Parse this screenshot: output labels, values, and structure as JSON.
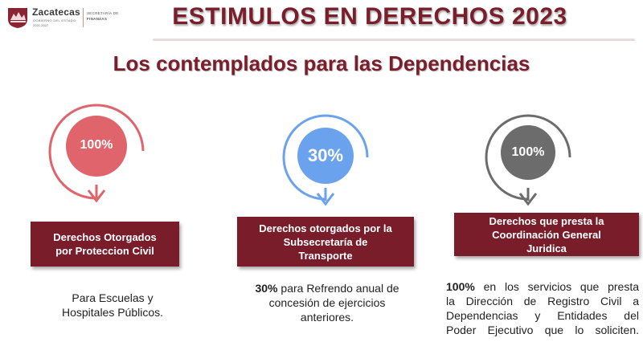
{
  "header": {
    "logo_name": "Zacatecas",
    "logo_sub1": "GOBIERNO DEL ESTADO",
    "logo_sub2": "2021-2027",
    "dept_line1": "SECRETARÍA DE",
    "dept_line2": "FINANZAS",
    "title": "ESTIMULOS EN DERECHOS 2023"
  },
  "subtitle": "Los contemplados para las Dependencias",
  "colors": {
    "maroon": "#7a1d2b",
    "red_ring": "#e0646b",
    "blue_ring": "#6aa2ee",
    "gray_ring": "#6c6c6c"
  },
  "items": [
    {
      "percent": "100%",
      "bar_line1": "Derechos Otorgados",
      "bar_line2": "por Proteccion Civil",
      "desc_line1": "Para Escuelas y",
      "desc_line2": "Hospitales Públicos."
    },
    {
      "percent": "30%",
      "bar_line1": "Derechos otorgados por la",
      "bar_line2": "Subsecretaría de",
      "bar_line3": "Transporte",
      "desc_bold": "30%",
      "desc_line1_rest": " para Refrendo anual de",
      "desc_line2": "concesión de ejercicios",
      "desc_line3": "anteriores."
    },
    {
      "percent": "100%",
      "bar_line1": "Derechos que presta la",
      "bar_line2": "Coordinación General",
      "bar_line3": "Juridica",
      "desc_bold": "100%",
      "desc_line1_rest": " en los servicios que presta",
      "desc_line2": "la Dirección de Registro Civil a",
      "desc_line3": "Dependencias y Entidades del",
      "desc_line4": "Poder Ejecutivo que lo soliciten."
    }
  ]
}
